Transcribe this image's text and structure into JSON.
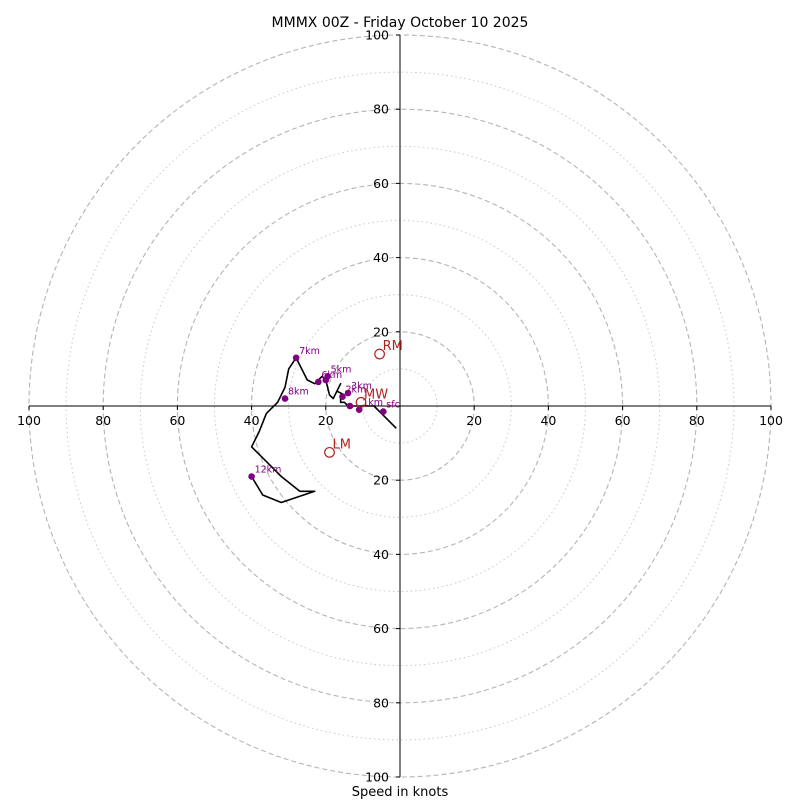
{
  "chart_data": {
    "type": "scatter",
    "title": "MMMX 00Z - Friday October 10 2025",
    "xlabel": "Speed in knots",
    "ylabel": "",
    "xlim": [
      -100,
      100
    ],
    "ylim": [
      -100,
      100
    ],
    "rings_major": [
      20,
      40,
      60,
      80,
      100
    ],
    "rings_minor": [
      10,
      30,
      50,
      70,
      90
    ],
    "x_tick_labels": [
      "100",
      "80",
      "60",
      "40",
      "20",
      "20",
      "40",
      "60",
      "80",
      "100"
    ],
    "x_tick_values": [
      -100,
      -80,
      -60,
      -40,
      -20,
      20,
      40,
      60,
      80,
      100
    ],
    "y_tick_labels": [
      "100",
      "80",
      "60",
      "40",
      "20",
      "20",
      "40",
      "60",
      "80",
      "100"
    ],
    "y_tick_values": [
      100,
      80,
      60,
      40,
      20,
      -20,
      -40,
      -60,
      -80,
      -100
    ],
    "hodograph": {
      "color": "#000000",
      "u": [
        -1,
        -5,
        -7,
        -10,
        -12,
        -14,
        -15,
        -16,
        -16,
        -15,
        -17,
        -16,
        -18,
        -19,
        -20,
        -21,
        -23,
        -25,
        -28,
        -30,
        -31,
        -33,
        -36,
        -38,
        -40,
        -36,
        -32,
        -27,
        -23,
        -32,
        -37,
        -40
      ],
      "v": [
        -6,
        -2,
        0,
        0,
        0,
        0,
        1,
        1,
        3,
        3,
        4,
        6,
        2,
        3,
        7,
        8,
        6,
        7,
        13,
        10,
        5,
        1,
        -2,
        -7,
        -11,
        -15,
        -19,
        -23,
        -23,
        -26,
        -24,
        -19
      ]
    },
    "height_markers": {
      "color": "#800080",
      "points": [
        {
          "label": "sfc",
          "u": -4.5,
          "v": -1.5
        },
        {
          "label": "1km",
          "u": -11,
          "v": -1
        },
        {
          "label": "",
          "u": -13.5,
          "v": 0
        },
        {
          "label": "2km",
          "u": -15.5,
          "v": 2.5
        },
        {
          "label": "3km",
          "u": -14,
          "v": 3.5
        },
        {
          "label": "5km",
          "u": -19.5,
          "v": 8
        },
        {
          "label": "6km",
          "u": -22,
          "v": 6.5
        },
        {
          "label": "",
          "u": -20,
          "v": 7
        },
        {
          "label": "7km",
          "u": -28,
          "v": 13
        },
        {
          "label": "8km",
          "u": -31,
          "v": 2
        },
        {
          "label": "12km",
          "u": -40,
          "v": -19
        }
      ]
    },
    "motion_markers": {
      "color": "#b22222",
      "points": [
        {
          "label": "RM",
          "u": -5.5,
          "v": 14
        },
        {
          "label": "MW",
          "u": -10.5,
          "v": 1
        },
        {
          "label": "LM",
          "u": -19,
          "v": -12.5
        }
      ]
    }
  }
}
